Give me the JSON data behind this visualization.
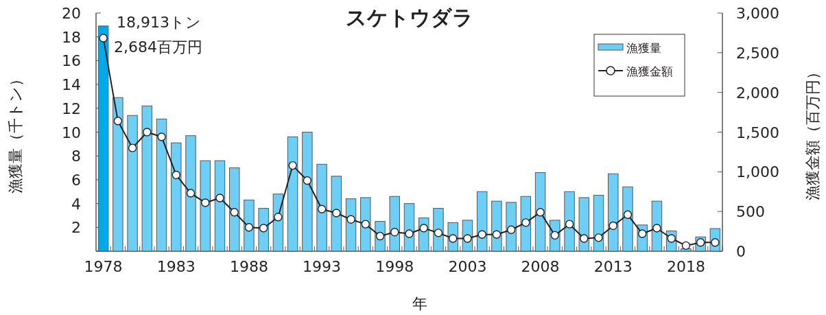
{
  "chart_data": {
    "type": "bar",
    "title": "スケトウダラ",
    "xlabel": "年",
    "ylabel": "漁獲量（千トン）",
    "y2label": "漁獲金額（百万円）",
    "categories": [
      "1978",
      null,
      null,
      null,
      null,
      "1983",
      null,
      null,
      null,
      null,
      "1988",
      null,
      null,
      null,
      null,
      "1993",
      null,
      null,
      null,
      null,
      "1998",
      null,
      null,
      null,
      null,
      "2003",
      null,
      null,
      null,
      null,
      "2008",
      null,
      null,
      null,
      null,
      "2013",
      null,
      null,
      null,
      null,
      "2018",
      null,
      null
    ],
    "series": [
      {
        "name": "漁獲量",
        "color": "#6dcff6",
        "colors": [
          "#00a9e8",
          "#6dcff6",
          "#6dcff6",
          "#6dcff6",
          "#6dcff6",
          "#6dcff6",
          "#6dcff6",
          "#6dcff6",
          "#6dcff6",
          "#6dcff6",
          "#6dcff6",
          "#6dcff6",
          "#6dcff6",
          "#6dcff6",
          "#6dcff6",
          "#6dcff6",
          "#6dcff6",
          "#6dcff6",
          "#6dcff6",
          "#6dcff6",
          "#6dcff6",
          "#6dcff6",
          "#6dcff6",
          "#6dcff6",
          "#6dcff6",
          "#6dcff6",
          "#6dcff6",
          "#6dcff6",
          "#6dcff6",
          "#6dcff6",
          "#6dcff6",
          "#6dcff6",
          "#6dcff6",
          "#6dcff6",
          "#6dcff6",
          "#6dcff6",
          "#6dcff6",
          "#6dcff6",
          "#6dcff6",
          "#6dcff6",
          "#6dcff6",
          "#6dcff6",
          "#6dcff6"
        ],
        "values": [
          18.913,
          12.9,
          11.4,
          12.2,
          11.1,
          9.1,
          9.7,
          7.6,
          7.6,
          7.0,
          4.3,
          3.6,
          4.8,
          9.6,
          10.0,
          7.3,
          6.3,
          4.4,
          4.5,
          2.5,
          4.6,
          4.0,
          2.8,
          3.6,
          2.4,
          2.6,
          5.0,
          4.2,
          4.1,
          4.6,
          6.6,
          2.6,
          5.0,
          4.5,
          4.7,
          6.5,
          5.4,
          2.2,
          4.2,
          1.7,
          0.2,
          1.2,
          1.9
        ]
      },
      {
        "name": "漁獲金額",
        "type": "line",
        "axis": "y2",
        "color": "#231f20",
        "marker": "circle",
        "values": [
          2684,
          1640,
          1300,
          1500,
          1440,
          960,
          730,
          610,
          670,
          490,
          300,
          290,
          430,
          1080,
          890,
          530,
          480,
          400,
          340,
          190,
          240,
          220,
          290,
          230,
          160,
          160,
          210,
          210,
          270,
          360,
          490,
          200,
          340,
          160,
          170,
          320,
          460,
          220,
          290,
          160,
          70,
          110,
          110
        ]
      }
    ],
    "ylim": [
      0,
      20
    ],
    "yticks": [
      {
        "value": 0,
        "label": null
      },
      2,
      4,
      6,
      8,
      10,
      12,
      14,
      16,
      18,
      20
    ],
    "y2lim": [
      0,
      3000
    ],
    "y2ticks": [
      0,
      {
        "value": 500,
        "label": "500"
      },
      {
        "value": 1000,
        "label": "1,000"
      },
      {
        "value": 1500,
        "label": "1,500"
      },
      {
        "value": 2000,
        "label": "2,000"
      },
      {
        "value": 2500,
        "label": "2,500"
      },
      {
        "value": 3000,
        "label": "3,000"
      }
    ],
    "annotations": [
      "18,913トン",
      "2,684百万円"
    ],
    "legend": "top right",
    "grid": false
  }
}
